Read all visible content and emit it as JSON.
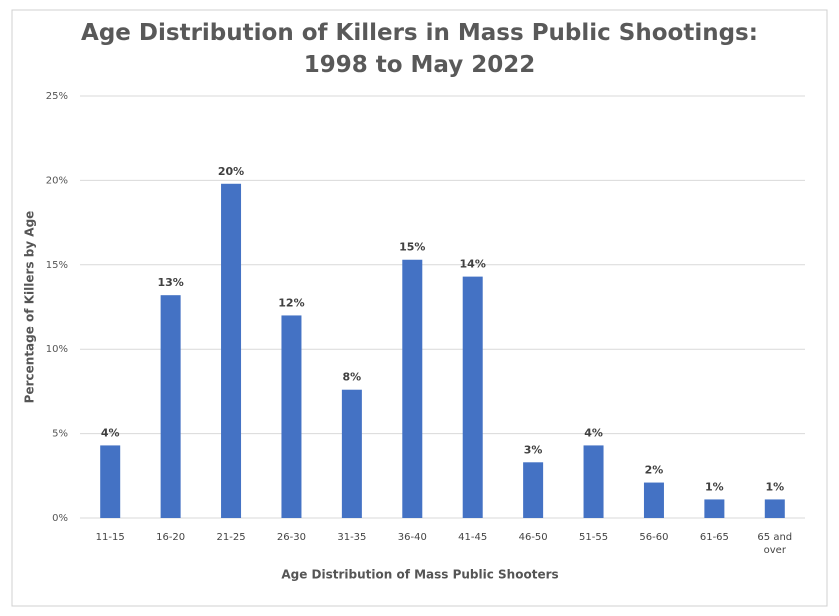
{
  "chart_data": {
    "type": "bar",
    "title": [
      "Age Distribution of Killers in Mass Public Shootings:",
      "1998 to May 2022"
    ],
    "x_label": "Age Distribution of Mass Public Shooters",
    "y_label": "Percentage of Killers by Age",
    "categories": [
      "11-15",
      "16-20",
      "21-25",
      "26-30",
      "31-35",
      "36-40",
      "41-45",
      "46-50",
      "51-55",
      "56-60",
      "61-65",
      "65 and over"
    ],
    "values": [
      4.3,
      13.2,
      19.8,
      12.0,
      7.6,
      15.3,
      14.3,
      3.3,
      4.3,
      2.1,
      1.1,
      1.1
    ],
    "value_labels": [
      "4%",
      "13%",
      "20%",
      "12%",
      "8%",
      "15%",
      "14%",
      "3%",
      "4%",
      "2%",
      "1%",
      "1%"
    ],
    "color": "#4472c4",
    "ylim": [
      0,
      25
    ],
    "yticks": [
      {
        "value": 0,
        "label": "0%"
      },
      {
        "value": 5,
        "label": "5%"
      },
      {
        "value": 10,
        "label": "10%"
      },
      {
        "value": 15,
        "label": "15%"
      },
      {
        "value": 20,
        "label": "20%"
      },
      {
        "value": 25,
        "label": "25%"
      }
    ],
    "grid": true
  }
}
